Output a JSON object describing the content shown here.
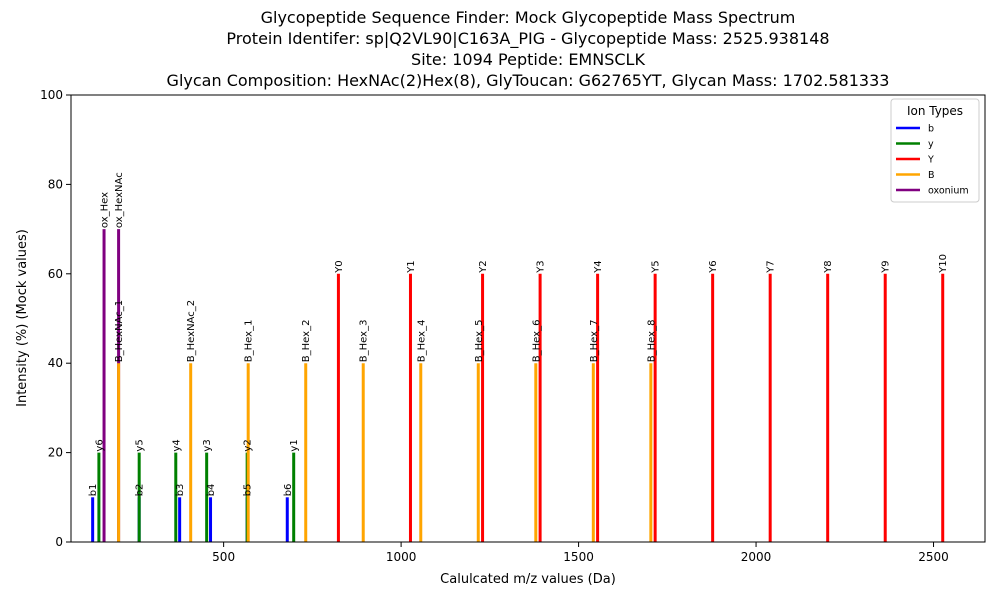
{
  "chart_data": {
    "type": "bar",
    "title_lines": [
      "Glycopeptide Sequence Finder: Mock Glycopeptide Mass Spectrum",
      "Protein Identifer: sp|Q2VL90|C163A_PIG - Glycopeptide Mass: 2525.938148",
      "Site: 1094 Peptide: EMNSCLK",
      "Glycan Composition: HexNAc(2)Hex(8), GlyToucan: G62765YT, Glycan Mass: 1702.581333"
    ],
    "xlabel": "Calulcated m/z values (Da)",
    "ylabel": "Intensity (%) (Mock values)",
    "xlim": [
      70,
      2645
    ],
    "ylim": [
      0,
      100
    ],
    "xticks": [
      500,
      1000,
      1500,
      2000,
      2500
    ],
    "yticks": [
      0,
      20,
      40,
      60,
      80,
      100
    ],
    "grid": false,
    "legend": {
      "title": "Ion Types",
      "position": "top-right",
      "entries": [
        {
          "name": "b",
          "color": "#0000ff"
        },
        {
          "name": "y",
          "color": "#008000"
        },
        {
          "name": "Y",
          "color": "#ff0000"
        },
        {
          "name": "B",
          "color": "#ffa500"
        },
        {
          "name": "oxonium",
          "color": "#800080"
        }
      ]
    },
    "peaks": [
      {
        "label": "b1",
        "type": "b",
        "mz": 131.0,
        "intensity": 10
      },
      {
        "label": "b2",
        "type": "b",
        "mz": 262.0,
        "intensity": 10
      },
      {
        "label": "b3",
        "type": "b",
        "mz": 376.1,
        "intensity": 10
      },
      {
        "label": "b4",
        "type": "b",
        "mz": 463.1,
        "intensity": 10
      },
      {
        "label": "b5",
        "type": "b",
        "mz": 566.2,
        "intensity": 10
      },
      {
        "label": "b6",
        "type": "b",
        "mz": 679.3,
        "intensity": 10
      },
      {
        "label": "y1",
        "type": "y",
        "mz": 697.4,
        "intensity": 20
      },
      {
        "label": "y2",
        "type": "y",
        "mz": 566.3,
        "intensity": 20
      },
      {
        "label": "y3",
        "type": "y",
        "mz": 452.2,
        "intensity": 20
      },
      {
        "label": "y4",
        "type": "y",
        "mz": 365.2,
        "intensity": 20
      },
      {
        "label": "y5",
        "type": "y",
        "mz": 262.1,
        "intensity": 20
      },
      {
        "label": "y6",
        "type": "y",
        "mz": 148.6,
        "intensity": 20
      },
      {
        "label": "ox_Hex",
        "type": "oxonium",
        "mz": 163.1,
        "intensity": 70
      },
      {
        "label": "ox_HexNAc",
        "type": "oxonium",
        "mz": 204.1,
        "intensity": 70
      },
      {
        "label": "B_HexNAc_1",
        "type": "B",
        "mz": 204.1,
        "intensity": 40
      },
      {
        "label": "B_HexNAc_2",
        "type": "B",
        "mz": 407.2,
        "intensity": 40
      },
      {
        "label": "B_Hex_1",
        "type": "B",
        "mz": 569.2,
        "intensity": 40
      },
      {
        "label": "B_Hex_2",
        "type": "B",
        "mz": 731.3,
        "intensity": 40
      },
      {
        "label": "B_Hex_3",
        "type": "B",
        "mz": 893.3,
        "intensity": 40
      },
      {
        "label": "B_Hex_4",
        "type": "B",
        "mz": 1055.4,
        "intensity": 40
      },
      {
        "label": "B_Hex_5",
        "type": "B",
        "mz": 1217.4,
        "intensity": 40
      },
      {
        "label": "B_Hex_6",
        "type": "B",
        "mz": 1379.5,
        "intensity": 40
      },
      {
        "label": "B_Hex_7",
        "type": "B",
        "mz": 1541.5,
        "intensity": 40
      },
      {
        "label": "B_Hex_8",
        "type": "B",
        "mz": 1703.6,
        "intensity": 40
      },
      {
        "label": "Y0",
        "type": "Y",
        "mz": 823.4,
        "intensity": 60
      },
      {
        "label": "Y1",
        "type": "Y",
        "mz": 1026.4,
        "intensity": 60
      },
      {
        "label": "Y2",
        "type": "Y",
        "mz": 1229.5,
        "intensity": 60
      },
      {
        "label": "Y3",
        "type": "Y",
        "mz": 1391.6,
        "intensity": 60
      },
      {
        "label": "Y4",
        "type": "Y",
        "mz": 1553.6,
        "intensity": 60
      },
      {
        "label": "Y5",
        "type": "Y",
        "mz": 1715.7,
        "intensity": 60
      },
      {
        "label": "Y6",
        "type": "Y",
        "mz": 1877.7,
        "intensity": 60
      },
      {
        "label": "Y7",
        "type": "Y",
        "mz": 2039.8,
        "intensity": 60
      },
      {
        "label": "Y8",
        "type": "Y",
        "mz": 2201.8,
        "intensity": 60
      },
      {
        "label": "Y9",
        "type": "Y",
        "mz": 2363.9,
        "intensity": 60
      },
      {
        "label": "Y10",
        "type": "Y",
        "mz": 2525.9,
        "intensity": 60
      }
    ]
  }
}
